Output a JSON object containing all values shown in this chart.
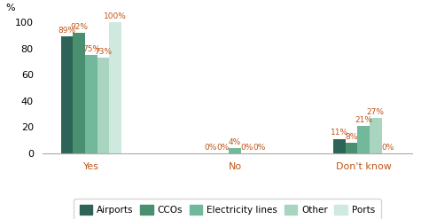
{
  "categories": [
    "Yes",
    "No",
    "Don't know"
  ],
  "series": [
    {
      "label": "Airports",
      "color": "#2d6457",
      "values": [
        89,
        0,
        11
      ]
    },
    {
      "label": "CCOs",
      "color": "#4a9070",
      "values": [
        92,
        0,
        8
      ]
    },
    {
      "label": "Electricity lines",
      "color": "#72b89b",
      "values": [
        75,
        4,
        21
      ]
    },
    {
      "label": "Other",
      "color": "#a8d4c0",
      "values": [
        73,
        0,
        27
      ]
    },
    {
      "label": "Ports",
      "color": "#d0e9df",
      "values": [
        100,
        0,
        0
      ]
    }
  ],
  "ylabel": "%",
  "ylim": [
    0,
    112
  ],
  "yticks": [
    0,
    20,
    40,
    60,
    80,
    100
  ],
  "bar_width": 0.16,
  "group_centers": [
    1.0,
    2.9,
    4.6
  ],
  "label_color": "#c0561a",
  "axis_label_color": "#c0561a",
  "legend_fontsize": 7.5,
  "tick_fontsize": 8,
  "value_fontsize": 6.5
}
